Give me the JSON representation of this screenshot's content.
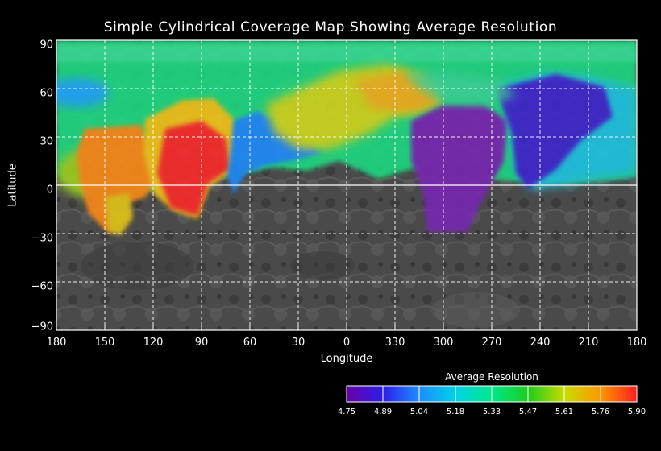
{
  "title": "Simple Cylindrical Coverage Map Showing Average Resolution",
  "axes": {
    "x_label": "Longitude",
    "y_label": "Latitude",
    "x_ticks": [
      "180",
      "150",
      "120",
      "90",
      "60",
      "30",
      "0",
      "330",
      "300",
      "270",
      "240",
      "210",
      "180"
    ],
    "y_ticks": [
      "90",
      "60",
      "30",
      "0",
      "−30",
      "−60",
      "−90"
    ]
  },
  "colorbar": {
    "title": "Average Resolution",
    "ticks": [
      "4.75",
      "4.89",
      "5.04",
      "5.18",
      "5.33",
      "5.47",
      "5.61",
      "5.76",
      "5.90"
    ],
    "colors": [
      "#6a00a8",
      "#2b1ee8",
      "#1e8cff",
      "#00d2e6",
      "#00e88a",
      "#1ecc1e",
      "#c8dc00",
      "#ff9600",
      "#ff1e1e"
    ]
  }
}
